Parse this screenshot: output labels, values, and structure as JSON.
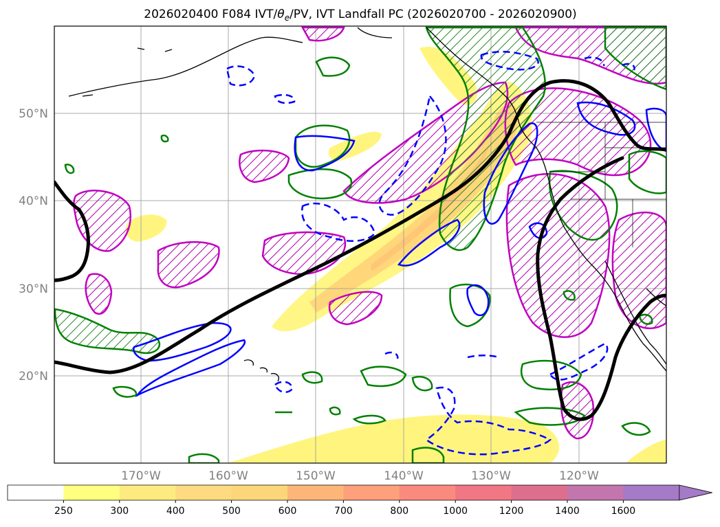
{
  "title": {
    "run": "2026020400",
    "forecast_hour": "F084",
    "fields_prefix": "IVT/",
    "fields_theta": "θ",
    "fields_theta_sub": "e",
    "fields_suffix": "/PV, IVT Landfall PC (2026020700 - 2026020900)"
  },
  "axes": {
    "lat_ticks": [
      "20°N",
      "30°N",
      "40°N",
      "50°N"
    ],
    "lon_ticks": [
      "170°W",
      "160°W",
      "150°W",
      "140°W",
      "130°W",
      "120°W"
    ]
  },
  "colorbar": {
    "levels": [
      "250",
      "300",
      "400",
      "500",
      "600",
      "700",
      "800",
      "1000",
      "1200",
      "1400",
      "1600"
    ],
    "colors": [
      "#ffffff",
      "#ffff80",
      "#fdeb80",
      "#fedb80",
      "#fdd67a",
      "#fdb678",
      "#fea07b",
      "#fb8a7e",
      "#f27784",
      "#de6e8e",
      "#c276ad",
      "#a57ac7"
    ],
    "extend": "max"
  },
  "legend_colors": {
    "ivt_fill": "#fff176",
    "ivt_core": "#ffd27a",
    "landfall_pc_contour": "#000000",
    "theta_e_positive": "#0000ff",
    "theta_e_negative_dashed": "#0000ff",
    "pv_contour": "#008000",
    "pv_hatched_contour": "#c000c0"
  }
}
